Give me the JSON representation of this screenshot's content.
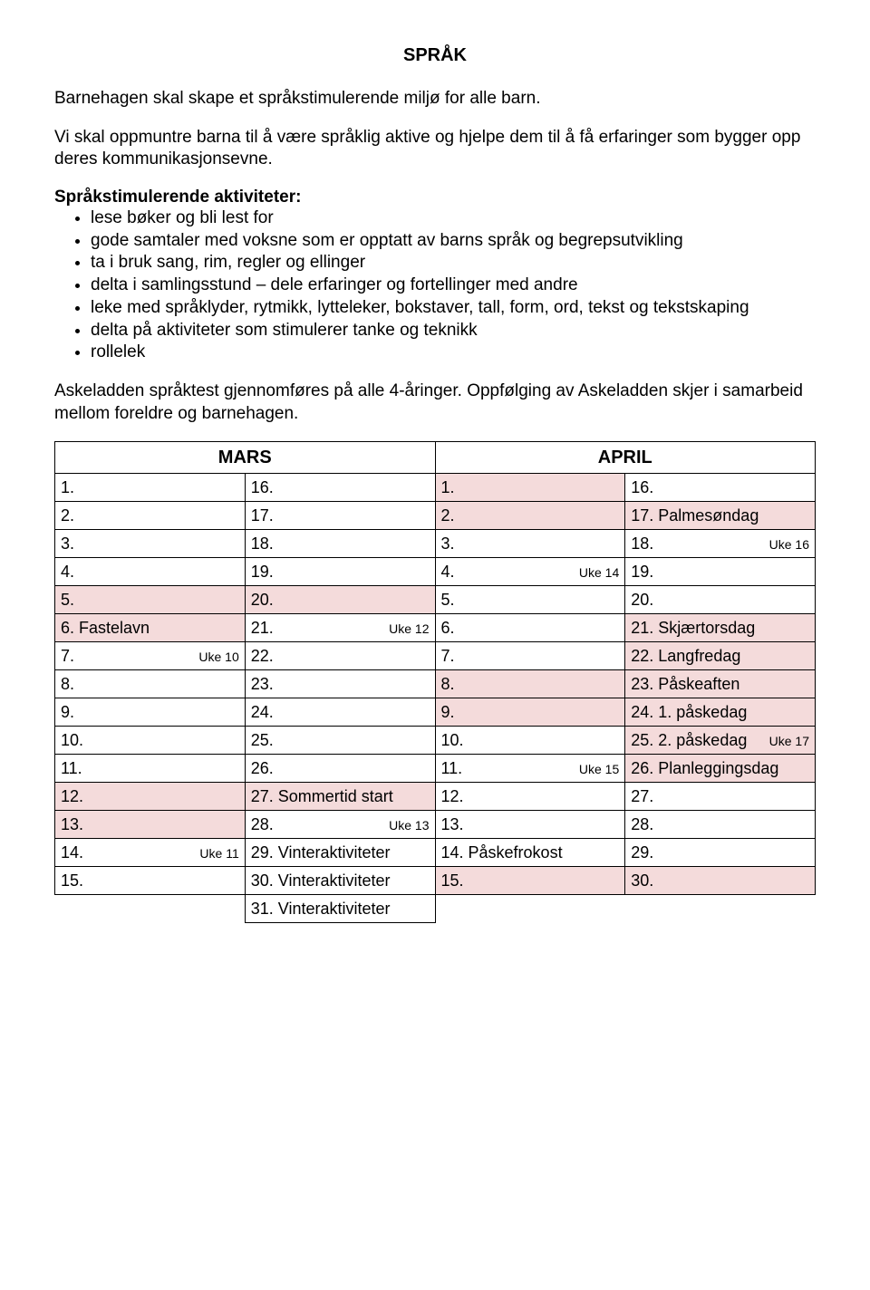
{
  "title": "SPRÅK",
  "intro_p1": "Barnehagen skal skape et språkstimulerende miljø for alle barn.",
  "intro_p2": "Vi skal oppmuntre barna til å være språklig aktive og hjelpe dem til å få erfaringer som bygger opp deres kommunikasjonsevne.",
  "sub_heading": "Språkstimulerende aktiviteter:",
  "bullets": [
    "lese bøker og bli lest for",
    "gode samtaler med voksne som er opptatt av barns språk og begrepsutvikling",
    "ta i bruk sang, rim, regler og ellinger",
    "delta i samlingsstund – dele erfaringer og fortellinger med andre",
    "leke med språklyder, rytmikk, lytteleker, bokstaver, tall, form, ord, tekst og tekstskaping",
    "delta på aktiviteter som stimulerer tanke og teknikk",
    "rollelek"
  ],
  "footer_para": "Askeladden språktest gjennomføres på alle 4-åringer. Oppfølging av Askeladden skjer i samarbeid mellom foreldre og barnehagen.",
  "months": {
    "mars": "MARS",
    "april": "APRIL"
  },
  "rows": [
    [
      {
        "t": "1.",
        "p": false
      },
      {
        "t": "16.",
        "p": false
      },
      {
        "t": "1.",
        "p": true
      },
      {
        "t": "16.",
        "p": false
      }
    ],
    [
      {
        "t": "2.",
        "p": false
      },
      {
        "t": "17.",
        "p": false
      },
      {
        "t": "2.",
        "p": true
      },
      {
        "t": "17. Palmesøndag",
        "p": true
      }
    ],
    [
      {
        "t": "3.",
        "p": false
      },
      {
        "t": "18.",
        "p": false
      },
      {
        "t": "3.",
        "p": false
      },
      {
        "t": "18.",
        "r": "Uke 16",
        "p": false
      }
    ],
    [
      {
        "t": "4.",
        "p": false
      },
      {
        "t": "19.",
        "p": false
      },
      {
        "t": "4.",
        "r": "Uke 14",
        "p": false
      },
      {
        "t": "19.",
        "p": false
      }
    ],
    [
      {
        "t": "5.",
        "p": true
      },
      {
        "t": "20.",
        "p": true
      },
      {
        "t": "5.",
        "p": false
      },
      {
        "t": "20.",
        "p": false
      }
    ],
    [
      {
        "t": "6. Fastelavn",
        "p": true
      },
      {
        "t": "21.",
        "r": "Uke 12",
        "p": false
      },
      {
        "t": "6.",
        "p": false
      },
      {
        "t": "21. Skjærtorsdag",
        "p": true
      }
    ],
    [
      {
        "t": "7.",
        "r": "Uke 10",
        "p": false
      },
      {
        "t": "22.",
        "p": false
      },
      {
        "t": "7.",
        "p": false
      },
      {
        "t": "22. Langfredag",
        "p": true
      }
    ],
    [
      {
        "t": "8.",
        "p": false
      },
      {
        "t": "23.",
        "p": false
      },
      {
        "t": "8.",
        "p": true
      },
      {
        "t": "23. Påskeaften",
        "p": true
      }
    ],
    [
      {
        "t": "9.",
        "p": false
      },
      {
        "t": "24.",
        "p": false
      },
      {
        "t": "9.",
        "p": true
      },
      {
        "t": "24. 1. påskedag",
        "p": true
      }
    ],
    [
      {
        "t": "10.",
        "p": false
      },
      {
        "t": "25.",
        "p": false
      },
      {
        "t": "10.",
        "p": false
      },
      {
        "t": "25. 2. påskedag",
        "r": "Uke 17",
        "p": true
      }
    ],
    [
      {
        "t": "11.",
        "p": false
      },
      {
        "t": "26.",
        "p": false
      },
      {
        "t": "11.",
        "r": "Uke 15",
        "p": false
      },
      {
        "t": "26. Planleggingsdag",
        "p": true
      }
    ],
    [
      {
        "t": "12.",
        "p": true
      },
      {
        "t": "27. Sommertid start",
        "p": true
      },
      {
        "t": "12.",
        "p": false
      },
      {
        "t": "27.",
        "p": false
      }
    ],
    [
      {
        "t": "13.",
        "p": true
      },
      {
        "t": "28.",
        "r": "Uke 13",
        "p": false
      },
      {
        "t": "13.",
        "p": false
      },
      {
        "t": "28.",
        "p": false
      }
    ],
    [
      {
        "t": "14.",
        "r": "Uke 11",
        "p": false
      },
      {
        "t": "29. Vinteraktiviteter",
        "p": false
      },
      {
        "t": "14. Påskefrokost",
        "p": false
      },
      {
        "t": "29.",
        "p": false
      }
    ],
    [
      {
        "t": "15.",
        "p": false
      },
      {
        "t": "30. Vinteraktiviteter",
        "p": false
      },
      {
        "t": "15.",
        "p": true
      },
      {
        "t": "30.",
        "p": true
      }
    ],
    [
      {
        "t": "",
        "p": false,
        "noborder": true
      },
      {
        "t": "31. Vinteraktiviteter",
        "p": false
      },
      {
        "t": "",
        "p": false,
        "noborder": true
      },
      {
        "t": "",
        "p": false,
        "noborder": true
      }
    ]
  ],
  "colors": {
    "pink": "#f4dbdb",
    "text": "#000000",
    "bg": "#ffffff"
  }
}
